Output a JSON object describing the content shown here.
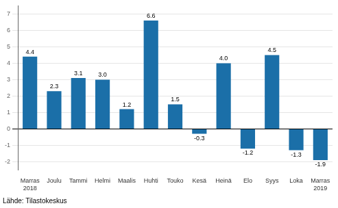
{
  "chart_data": {
    "type": "bar",
    "categories": [
      "Marras\n2018",
      "Joulu",
      "Tammi",
      "Helmi",
      "Maalis",
      "Huhti",
      "Touko",
      "Kesä",
      "Heinä",
      "Elo",
      "Syys",
      "Loka",
      "Marras\n2019"
    ],
    "values": [
      4.4,
      2.3,
      3.1,
      3.0,
      1.2,
      6.6,
      1.5,
      -0.3,
      4.0,
      -1.2,
      4.5,
      -1.3,
      -1.9
    ],
    "value_labels": [
      "4.4",
      "2.3",
      "3.1",
      "3.0",
      "1.2",
      "6.6",
      "1.5",
      "-0.3",
      "4.0",
      "-1.2",
      "4.5",
      "-1.3",
      "-1.9"
    ],
    "color": "#1B6FA8",
    "ylim": [
      -2.5,
      7.5
    ],
    "yticks": [
      -2,
      -1,
      0,
      1,
      2,
      3,
      4,
      5,
      6,
      7
    ],
    "grid": true,
    "data_labels": true,
    "annotations": [
      "Lähde: Tilastokeskus"
    ]
  }
}
